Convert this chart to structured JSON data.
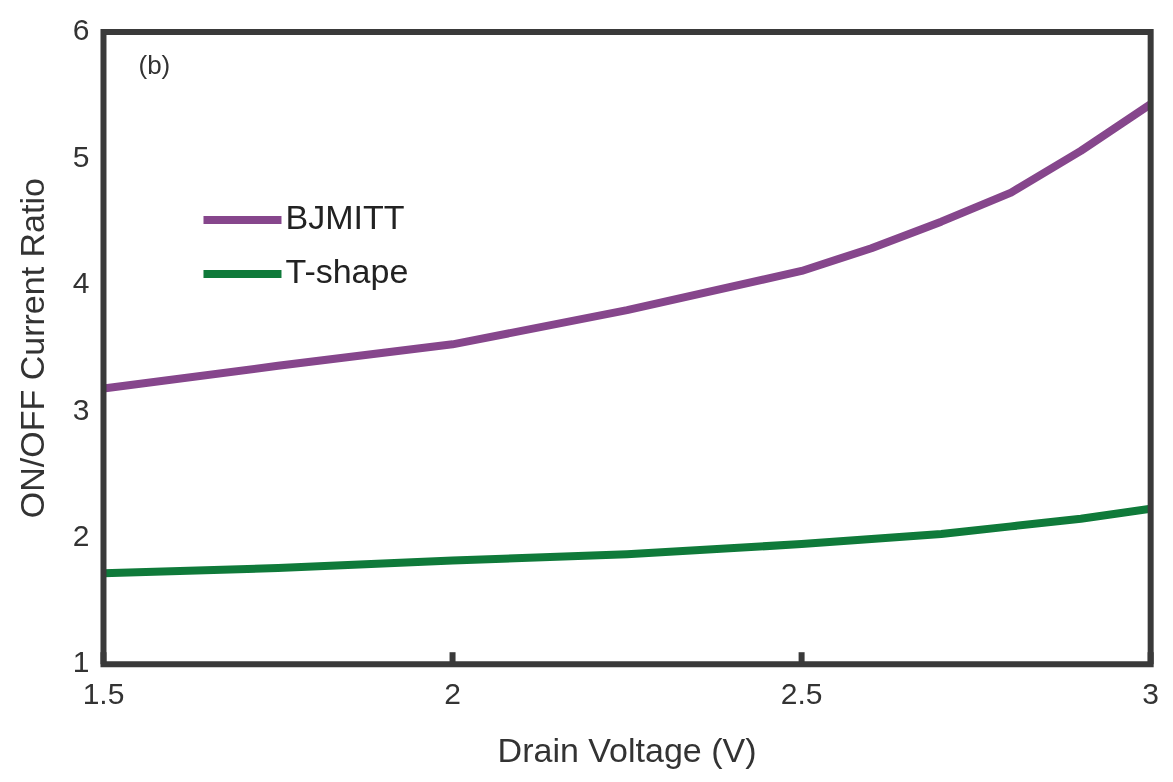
{
  "chart_data": {
    "type": "line",
    "xlabel": "Drain Voltage (V)",
    "ylabel": "ON/OFF Current Ratio",
    "annotations": [
      "(b)"
    ],
    "xlim": [
      1.5,
      3
    ],
    "xticks": [
      1.5,
      2,
      2.5,
      3
    ],
    "ylim": [
      1,
      6
    ],
    "yticks": [
      1,
      2,
      3,
      4,
      5,
      6
    ],
    "grid": false,
    "legend": "top left",
    "marker": "none",
    "line_style": "solid",
    "series": [
      {
        "name": "BJMITT",
        "color": "#86468c",
        "x": [
          1.5,
          1.75,
          2,
          2.25,
          2.5,
          2.6,
          2.7,
          2.8,
          2.9,
          3
        ],
        "values": [
          3.18,
          3.36,
          3.53,
          3.8,
          4.11,
          4.29,
          4.5,
          4.73,
          5.06,
          5.43
        ]
      },
      {
        "name": "T-shape",
        "color": "#0f7a3a",
        "x": [
          1.5,
          1.75,
          2,
          2.25,
          2.5,
          2.7,
          2.8,
          2.9,
          3
        ],
        "values": [
          1.72,
          1.76,
          1.82,
          1.87,
          1.95,
          2.03,
          2.09,
          2.15,
          2.23
        ]
      }
    ]
  }
}
